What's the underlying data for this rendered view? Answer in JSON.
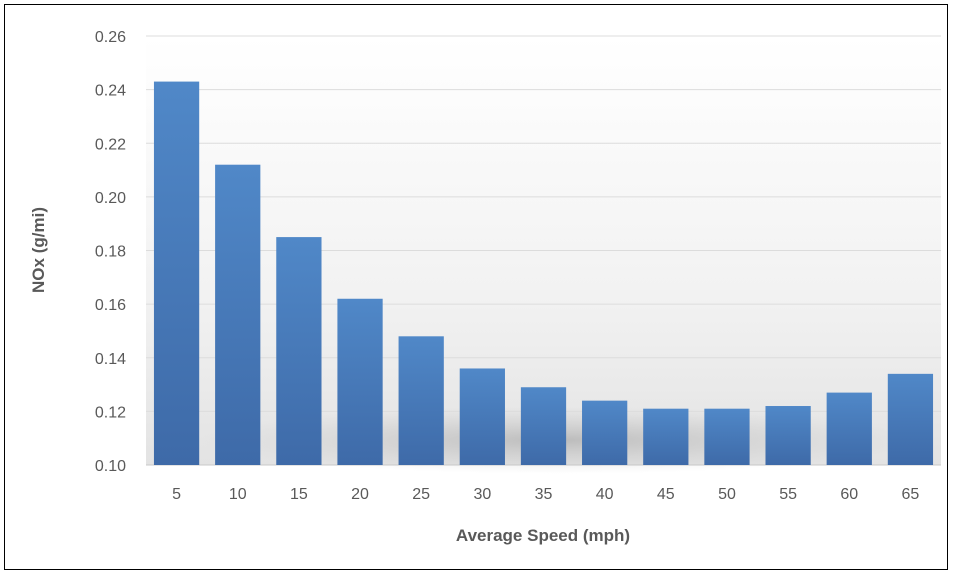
{
  "chart_data": {
    "type": "bar",
    "title": "",
    "xlabel": "Average Speed (mph)",
    "ylabel": "NOx (g/mi)",
    "categories": [
      "5",
      "10",
      "15",
      "20",
      "25",
      "30",
      "35",
      "40",
      "45",
      "50",
      "55",
      "60",
      "65"
    ],
    "values": [
      0.243,
      0.212,
      0.185,
      0.162,
      0.148,
      0.136,
      0.129,
      0.124,
      0.121,
      0.121,
      0.122,
      0.127,
      0.134
    ],
    "ylim": [
      0.1,
      0.26
    ],
    "yticks": [
      "0.10",
      "0.12",
      "0.14",
      "0.16",
      "0.18",
      "0.20",
      "0.22",
      "0.24",
      "0.26"
    ],
    "grid": true,
    "legend": "none",
    "bar_color": "#4a7fc1",
    "bar_color_dark": "#3d68a6"
  }
}
